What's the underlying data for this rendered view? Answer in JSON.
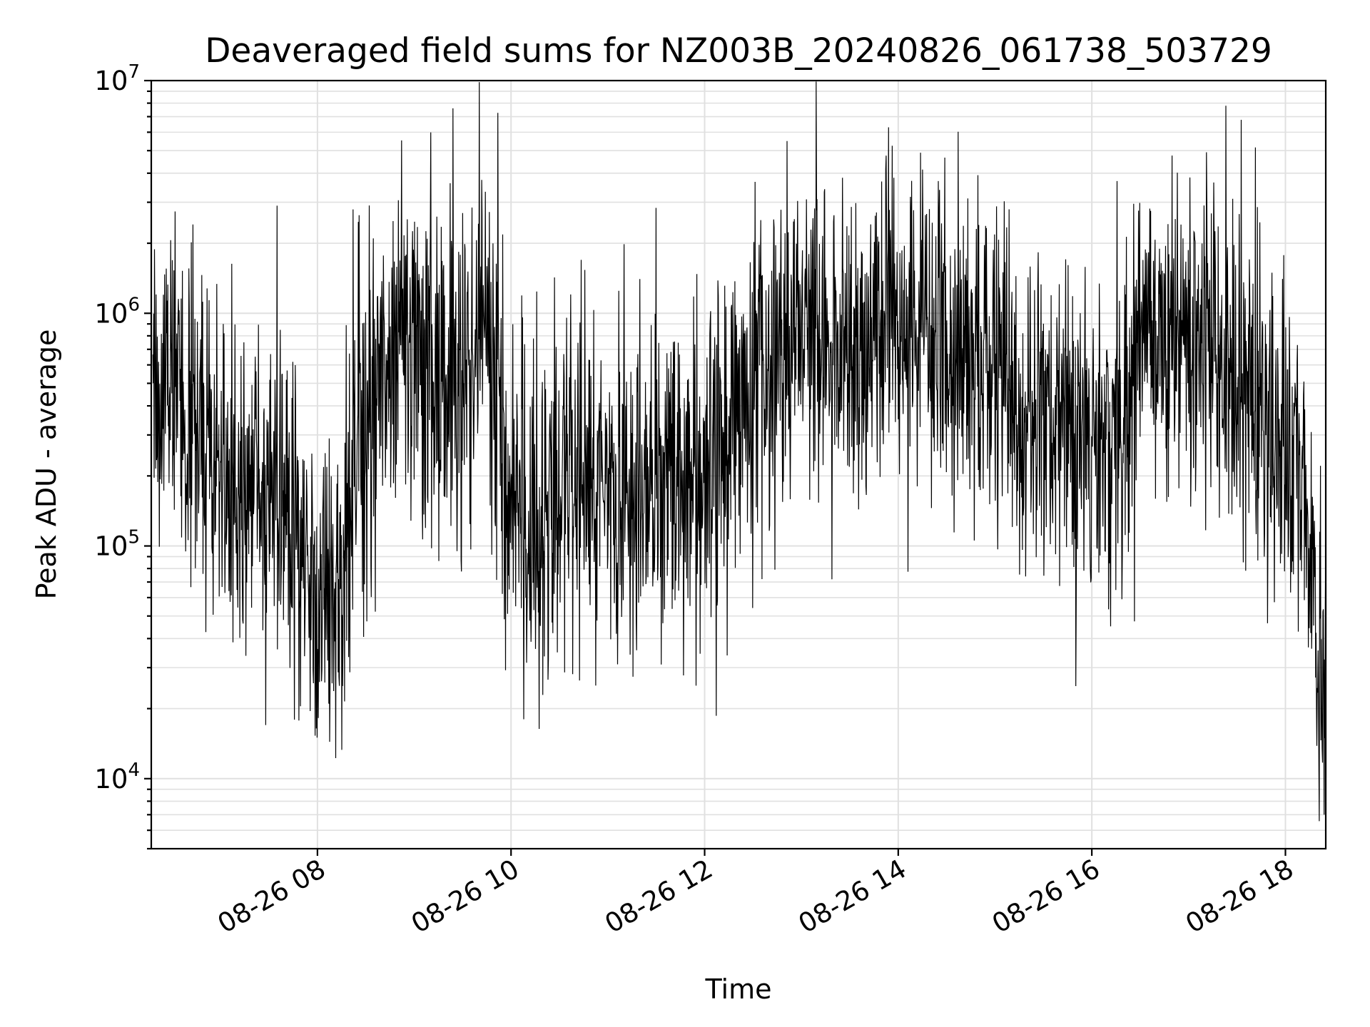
{
  "chart_data": {
    "type": "line",
    "title": "Deaveraged field sums for NZ003B_20240826_061738_503729",
    "xlabel": "Time",
    "ylabel": "Peak ADU - average",
    "x_tick_labels": [
      "08-26 08",
      "08-26 10",
      "08-26 12",
      "08-26 14",
      "08-26 16",
      "08-26 18"
    ],
    "y_tick_labels": [
      {
        "base": "10",
        "exp": "4"
      },
      {
        "base": "10",
        "exp": "5"
      },
      {
        "base": "10",
        "exp": "6"
      },
      {
        "base": "10",
        "exp": "7"
      }
    ],
    "xlim": [
      "2024-08-26 06:17",
      "2024-08-26 18:25"
    ],
    "ylim": [
      5000,
      10000000
    ],
    "yscale": "log",
    "grid": true,
    "series": [
      {
        "color": "#000000",
        "x": [
          "2024-08-26 06:18",
          "2024-08-26 06:30",
          "2024-08-26 06:45",
          "2024-08-26 07:00",
          "2024-08-26 07:15",
          "2024-08-26 07:30",
          "2024-08-26 07:45",
          "2024-08-26 08:00",
          "2024-08-26 08:15",
          "2024-08-26 08:30",
          "2024-08-26 08:45",
          "2024-08-26 09:00",
          "2024-08-26 09:15",
          "2024-08-26 09:30",
          "2024-08-26 09:45",
          "2024-08-26 10:00",
          "2024-08-26 10:15",
          "2024-08-26 10:30",
          "2024-08-26 10:45",
          "2024-08-26 11:00",
          "2024-08-26 11:15",
          "2024-08-26 11:30",
          "2024-08-26 11:45",
          "2024-08-26 12:00",
          "2024-08-26 12:15",
          "2024-08-26 12:30",
          "2024-08-26 12:45",
          "2024-08-26 13:00",
          "2024-08-26 13:15",
          "2024-08-26 13:30",
          "2024-08-26 13:45",
          "2024-08-26 14:00",
          "2024-08-26 14:15",
          "2024-08-26 14:30",
          "2024-08-26 14:45",
          "2024-08-26 15:00",
          "2024-08-26 15:15",
          "2024-08-26 15:30",
          "2024-08-26 15:45",
          "2024-08-26 16:00",
          "2024-08-26 16:15",
          "2024-08-26 16:30",
          "2024-08-26 16:45",
          "2024-08-26 17:00",
          "2024-08-26 17:15",
          "2024-08-26 17:30",
          "2024-08-26 17:45",
          "2024-08-26 18:00",
          "2024-08-26 18:10",
          "2024-08-26 18:20",
          "2024-08-26 18:25"
        ],
        "y": [
          400000,
          500000,
          300000,
          250000,
          200000,
          150000,
          120000,
          60000,
          80000,
          400000,
          600000,
          700000,
          600000,
          500000,
          900000,
          150000,
          120000,
          150000,
          250000,
          150000,
          180000,
          200000,
          200000,
          200000,
          300000,
          500000,
          600000,
          900000,
          700000,
          700000,
          700000,
          1000000,
          900000,
          800000,
          600000,
          500000,
          400000,
          350000,
          350000,
          300000,
          250000,
          700000,
          900000,
          700000,
          700000,
          500000,
          300000,
          250000,
          200000,
          50000,
          40000
        ],
        "spread": [
          0.55,
          0.6,
          0.55,
          0.55,
          0.55,
          0.55,
          0.6,
          0.55,
          0.6,
          0.65,
          0.6,
          0.6,
          0.6,
          0.6,
          0.6,
          0.65,
          0.6,
          0.6,
          0.6,
          0.6,
          0.6,
          0.6,
          0.6,
          0.6,
          0.6,
          0.6,
          0.55,
          0.55,
          0.55,
          0.55,
          0.55,
          0.55,
          0.55,
          0.55,
          0.55,
          0.6,
          0.6,
          0.6,
          0.6,
          0.6,
          0.6,
          0.55,
          0.55,
          0.55,
          0.55,
          0.6,
          0.6,
          0.6,
          0.6,
          0.6,
          0.6
        ],
        "peaks": [
          {
            "x": "2024-08-26 07:35",
            "y": 2900000
          },
          {
            "x": "2024-08-26 09:24",
            "y": 7600000
          },
          {
            "x": "2024-08-26 12:51",
            "y": 5500000
          },
          {
            "x": "2024-08-26 13:54",
            "y": 6300000
          },
          {
            "x": "2024-08-26 17:23",
            "y": 7800000
          },
          {
            "x": "2024-08-26 07:28",
            "y": 17000
          },
          {
            "x": "2024-08-26 10:08",
            "y": 18000
          },
          {
            "x": "2024-08-26 15:50",
            "y": 25000
          },
          {
            "x": "2024-08-26 18:24",
            "y": 7000
          }
        ]
      }
    ]
  }
}
